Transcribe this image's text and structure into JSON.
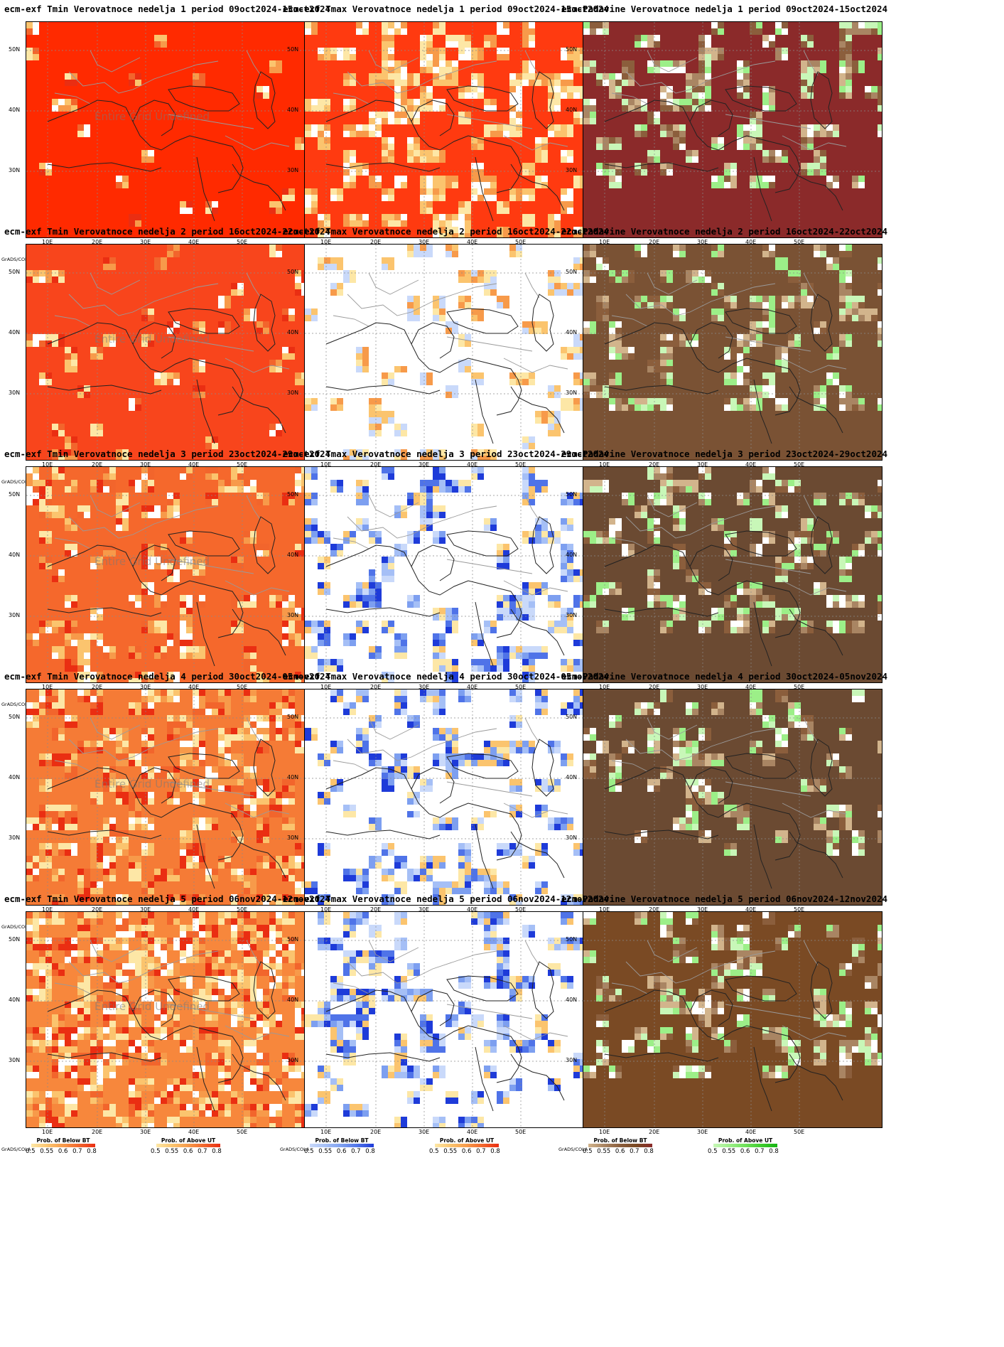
{
  "lat_labels": [
    "50N",
    "40N",
    "30N"
  ],
  "lon_labels": [
    "10E",
    "20E",
    "30E",
    "40E",
    "50E"
  ],
  "undefined_text": "Entire Grid Undefined",
  "grads_label": "GrADS/COLA",
  "legend_ticks": "0.5 0.55 0.6 0.7 0.8",
  "legends": {
    "below": "Prob. of Below BT",
    "above": "Prob. of Above UT"
  },
  "color_scales": {
    "temp_above": [
      "#fde7a6",
      "#fbc46e",
      "#f79a4a",
      "#f2652c",
      "#ea2e12"
    ],
    "tmax_below": [
      "#c9d9fa",
      "#a5bff6",
      "#7d9ff0",
      "#4f73e8",
      "#1e3bd9"
    ],
    "precip_below": [
      "#d2b48c",
      "#a98563",
      "#8b5e3c",
      "#7a4a24",
      "#8b2a2a"
    ],
    "precip_above": [
      "#c8f7b8",
      "#9cef88",
      "#6fe05a",
      "#3fcc2e",
      "#16b312"
    ]
  },
  "panels": [
    {
      "title": "ecm-exf Tmin Verovatnoce nedelja 1 period 09oct2024-15oct2024",
      "type": "tmin",
      "undefined": true,
      "base": "#ff2a00",
      "left_legend_color": "#ffb84d"
    },
    {
      "title": "ecm-exf Tmax Verovatnoce nedelja 1 period 09oct2024-15oct2024",
      "type": "tmax",
      "undefined": false,
      "base": "#ff3a10",
      "left_legend_color": "#3050e0"
    },
    {
      "title": "ecm-Padavine Verovatnoce nedelja 1 period 09oct2024-15oct2024",
      "type": "precip",
      "undefined": false,
      "base": "#8b2a2a",
      "left_legend_color": "#d2b48c"
    },
    {
      "title": "ecm-exf Tmin Verovatnoce nedelja 2 period 16oct2024-22oct2024",
      "type": "tmin",
      "undefined": true,
      "base": "#f8451c",
      "left_legend_color": "#ffb84d"
    },
    {
      "title": "ecm-exf Tmax Verovatnoce nedelja 2 period 16oct2024-22oct2024",
      "type": "tmax",
      "undefined": false,
      "base": "#ffffff",
      "left_legend_color": "#3050e0"
    },
    {
      "title": "ecm-Padavine Verovatnoce nedelja 2 period 16oct2024-22oct2024",
      "type": "precip",
      "undefined": false,
      "base": "#7a5234",
      "left_legend_color": "#d2b48c"
    },
    {
      "title": "ecm-exf Tmin Verovatnoce nedelja 3 period 23oct2024-29oct2024",
      "type": "tmin",
      "undefined": true,
      "base": "#f5682c",
      "left_legend_color": "#ffb84d"
    },
    {
      "title": "ecm-exf Tmax Verovatnoce nedelja 3 period 23oct2024-29oct2024",
      "type": "tmax",
      "undefined": false,
      "base": "#ffffff",
      "left_legend_color": "#3050e0"
    },
    {
      "title": "ecm-Padavine Verovatnoce nedelja 3 period 23oct2024-29oct2024",
      "type": "precip",
      "undefined": false,
      "base": "#6b4a32",
      "left_legend_color": "#d2b48c"
    },
    {
      "title": "ecm-exf Tmin Verovatnoce nedelja 4 period 30oct2024-05nov2024",
      "type": "tmin",
      "undefined": true,
      "base": "#f57b36",
      "left_legend_color": "#ffb84d"
    },
    {
      "title": "ecm-exf Tmax Verovatnoce nedelja 4 period 30oct2024-05nov2024",
      "type": "tmax",
      "undefined": false,
      "base": "#ffffff",
      "left_legend_color": "#3050e0"
    },
    {
      "title": "ecm-Padavine Verovatnoce nedelja 4 period 30oct2024-05nov2024",
      "type": "precip",
      "undefined": false,
      "base": "#6b4a32",
      "left_legend_color": "#d2b48c"
    },
    {
      "title": "ecm-exf Tmin Verovatnoce nedelja 5 period 06nov2024-12nov2024",
      "type": "tmin",
      "undefined": true,
      "base": "#f7873c",
      "left_legend_color": "#ffb84d"
    },
    {
      "title": "ecm-exf Tmax Verovatnoce nedelja 5 period 06nov2024-12nov2024",
      "type": "tmax",
      "undefined": false,
      "base": "#ffffff",
      "left_legend_color": "#3050e0"
    },
    {
      "title": "ecm-Padavine Verovatnoce nedelja 5 period 06nov2024-12nov2024",
      "type": "precip",
      "undefined": false,
      "base": "#7a4a24",
      "left_legend_color": "#d2b48c"
    }
  ]
}
